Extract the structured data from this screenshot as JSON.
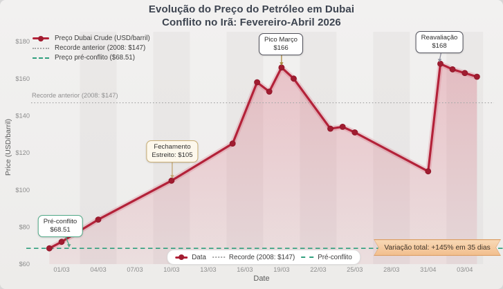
{
  "title": {
    "line1": "Evolução do Preço do Petróleo em Dubai",
    "line2": "Conflito no Irã: Fevereiro-Abril 2026"
  },
  "colors": {
    "line": "#b32239",
    "marker": "#a01c30",
    "marker_edge": "#8e1628",
    "record": "#a8a8a8",
    "preconflict": "#2f9f7d",
    "area_top": "rgba(203,35,62,0.22)",
    "area_bottom": "rgba(203,35,62,0.07)",
    "glow": "rgba(205,40,70,0.16)",
    "banner_bg": "#f2bf8e",
    "banner_border": "#db9f68"
  },
  "legend_top": {
    "items": [
      {
        "label": "Preço Dubai Crude (USD/barril)",
        "swatch": "line-marker"
      },
      {
        "label": "Recorde anterior (2008: $147)",
        "swatch": "dotted"
      },
      {
        "label": "Preço pré-conflito ($68.51)",
        "swatch": "dashed"
      }
    ]
  },
  "record_line_label": "Recorde anterior (2008: $147)",
  "annotations": [
    {
      "id": "pre-conflito",
      "line1": "Pré-conflito",
      "line2": "$68.51",
      "border": "#4fa886",
      "arrow": "#4fa886",
      "target_date": "28/02",
      "target_price": 68.51
    },
    {
      "id": "fechamento",
      "line1": "Fechamento",
      "line2": "Estreito: $105",
      "border": "#c9ae74",
      "arrow": "#c2a670",
      "target_date": "10/03",
      "target_price": 105
    },
    {
      "id": "pico",
      "line1": "Pico Março",
      "line2": "$166",
      "border": "#50505a",
      "arrow": "#a8893e",
      "target_date": "19/03",
      "target_price": 166
    },
    {
      "id": "reavaliacao",
      "line1": "Reavaliação",
      "line2": "$168",
      "border": "#50505a",
      "arrow": "#8f8f9e",
      "target_date": "01/04",
      "target_price": 168
    }
  ],
  "banner": {
    "text": "Variação total: +145% em 35 dias"
  },
  "legend_bottom": {
    "items": [
      {
        "label": "Data",
        "swatch": "line-marker"
      },
      {
        "label": "Recorde (2008: $147)",
        "swatch": "dotted"
      },
      {
        "label": "Pré-conflito",
        "swatch": "dashed"
      }
    ]
  },
  "axes": {
    "x_label": "Date",
    "y_label": "Price (USD/barril)"
  },
  "chart_data": {
    "type": "line",
    "title": "Evolução do Preço do Petróleo em Dubai — Conflito no Irã: Fevereiro-Abril 2026",
    "xlabel": "Date",
    "ylabel": "Price (USD/barril)",
    "ylim": [
      60,
      180
    ],
    "grid": false,
    "legend_position": "upper left",
    "x_ticks": [
      "01/03",
      "04/03",
      "07/03",
      "10/03",
      "13/03",
      "16/03",
      "19/03",
      "22/03",
      "25/03",
      "28/03",
      "31/04",
      "03/04"
    ],
    "y_ticks": [
      {
        "label": "$60",
        "value": 60
      },
      {
        "label": "$80",
        "value": 80
      },
      {
        "label": "$100",
        "value": 100
      },
      {
        "label": "$120",
        "value": 120
      },
      {
        "label": "$140",
        "value": 140
      },
      {
        "label": "$160",
        "value": 160
      },
      {
        "label": "$180",
        "value": 180
      }
    ],
    "series": [
      {
        "name": "Preço Dubai Crude (USD/barril)",
        "points": [
          {
            "date": "28/02",
            "price": 68.51
          },
          {
            "date": "01/03",
            "price": 72
          },
          {
            "date": "04/03",
            "price": 84
          },
          {
            "date": "10/03",
            "price": 105
          },
          {
            "date": "15/03",
            "price": 125
          },
          {
            "date": "17/03",
            "price": 158
          },
          {
            "date": "18/03",
            "price": 153
          },
          {
            "date": "19/03",
            "price": 166
          },
          {
            "date": "20/03",
            "price": 160
          },
          {
            "date": "23/03",
            "price": 133
          },
          {
            "date": "24/03",
            "price": 134
          },
          {
            "date": "25/03",
            "price": 131
          },
          {
            "date": "31/03",
            "price": 110
          },
          {
            "date": "01/04",
            "price": 168
          },
          {
            "date": "02/04",
            "price": 165
          },
          {
            "date": "03/04",
            "price": 163
          },
          {
            "date": "04/04",
            "price": 161
          }
        ]
      }
    ],
    "reference_lines": [
      {
        "label": "Recorde anterior (2008: $147)",
        "value": 147,
        "style": "dotted"
      },
      {
        "label": "Preço pré-conflito ($68.51)",
        "value": 68.51,
        "style": "dashed"
      }
    ]
  }
}
